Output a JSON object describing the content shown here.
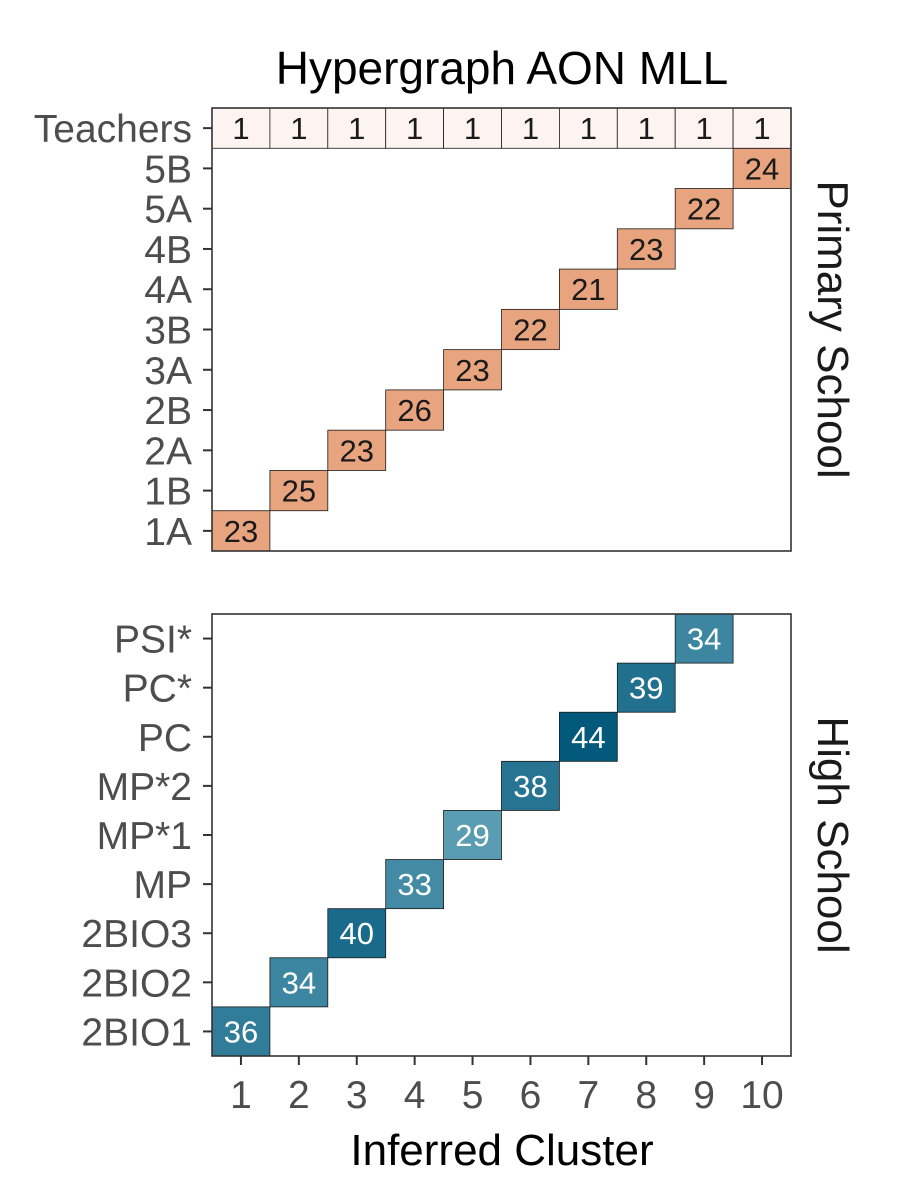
{
  "chart_data": {
    "type": "heatmap",
    "title": "Hypergraph AON MLL",
    "xlabel": "Inferred Cluster",
    "x_categories": [
      "1",
      "2",
      "3",
      "4",
      "5",
      "6",
      "7",
      "8",
      "9",
      "10"
    ],
    "colors": {
      "primary_fill": "#e8a47e",
      "primary_low_fill": "#fdf3f0",
      "primary_text": "#1a1a1a",
      "high_scale": [
        "#5a9db3",
        "#03597c"
      ],
      "high_text": "#ffffff"
    },
    "panels": [
      {
        "id": "primary",
        "strip_label": "Primary School",
        "y_categories": [
          "1A",
          "1B",
          "2A",
          "2B",
          "3A",
          "3B",
          "4A",
          "4B",
          "5A",
          "5B",
          "Teachers"
        ],
        "cells": [
          {
            "x": "1",
            "y": "1A",
            "value": 23
          },
          {
            "x": "2",
            "y": "1B",
            "value": 25
          },
          {
            "x": "3",
            "y": "2A",
            "value": 23
          },
          {
            "x": "4",
            "y": "2B",
            "value": 26
          },
          {
            "x": "5",
            "y": "3A",
            "value": 23
          },
          {
            "x": "6",
            "y": "3B",
            "value": 22
          },
          {
            "x": "7",
            "y": "4A",
            "value": 21
          },
          {
            "x": "8",
            "y": "4B",
            "value": 23
          },
          {
            "x": "9",
            "y": "5A",
            "value": 22
          },
          {
            "x": "10",
            "y": "5B",
            "value": 24
          },
          {
            "x": "1",
            "y": "Teachers",
            "value": 1
          },
          {
            "x": "2",
            "y": "Teachers",
            "value": 1
          },
          {
            "x": "3",
            "y": "Teachers",
            "value": 1
          },
          {
            "x": "4",
            "y": "Teachers",
            "value": 1
          },
          {
            "x": "5",
            "y": "Teachers",
            "value": 1
          },
          {
            "x": "6",
            "y": "Teachers",
            "value": 1
          },
          {
            "x": "7",
            "y": "Teachers",
            "value": 1
          },
          {
            "x": "8",
            "y": "Teachers",
            "value": 1
          },
          {
            "x": "9",
            "y": "Teachers",
            "value": 1
          },
          {
            "x": "10",
            "y": "Teachers",
            "value": 1
          }
        ]
      },
      {
        "id": "high",
        "strip_label": "High School",
        "y_categories": [
          "2BIO1",
          "2BIO2",
          "2BIO3",
          "MP",
          "MP*1",
          "MP*2",
          "PC",
          "PC*",
          "PSI*"
        ],
        "cells": [
          {
            "x": "1",
            "y": "2BIO1",
            "value": 36
          },
          {
            "x": "2",
            "y": "2BIO2",
            "value": 34
          },
          {
            "x": "3",
            "y": "2BIO3",
            "value": 40
          },
          {
            "x": "4",
            "y": "MP",
            "value": 33
          },
          {
            "x": "5",
            "y": "MP*1",
            "value": 29
          },
          {
            "x": "6",
            "y": "MP*2",
            "value": 38
          },
          {
            "x": "7",
            "y": "PC",
            "value": 44
          },
          {
            "x": "8",
            "y": "PC*",
            "value": 39
          },
          {
            "x": "9",
            "y": "PSI*",
            "value": 34
          }
        ]
      }
    ]
  }
}
